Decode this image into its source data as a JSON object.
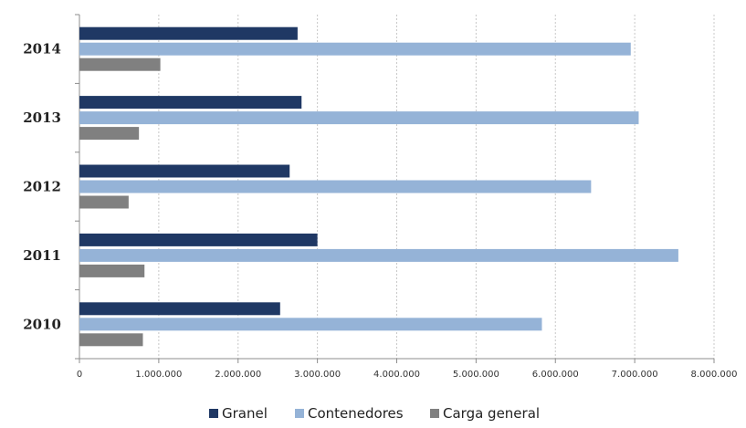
{
  "chart_data": {
    "type": "bar",
    "orientation": "horizontal",
    "categories": [
      "2014",
      "2013",
      "2012",
      "2011",
      "2010"
    ],
    "series": [
      {
        "name": "Granel",
        "color": "#1f3864",
        "values": [
          2750000,
          2800000,
          2650000,
          3000000,
          2530000
        ]
      },
      {
        "name": "Contenedores",
        "color": "#95b3d7",
        "values": [
          6950000,
          7050000,
          6450000,
          7550000,
          5830000
        ]
      },
      {
        "name": "Carga general",
        "color": "#808080",
        "values": [
          1020000,
          750000,
          620000,
          820000,
          800000
        ]
      }
    ],
    "xlim": [
      0,
      8000000
    ],
    "xticks": [
      0,
      1000000,
      2000000,
      3000000,
      4000000,
      5000000,
      6000000,
      7000000,
      8000000
    ],
    "xtick_labels": [
      "0",
      "1.000.000",
      "2.000.000",
      "3.000.000",
      "4.000.000",
      "5.000.000",
      "6.000.000",
      "7.000.000",
      "8.000.000"
    ],
    "grid": true,
    "legend_position": "bottom",
    "title": "",
    "xlabel": "",
    "ylabel": ""
  }
}
